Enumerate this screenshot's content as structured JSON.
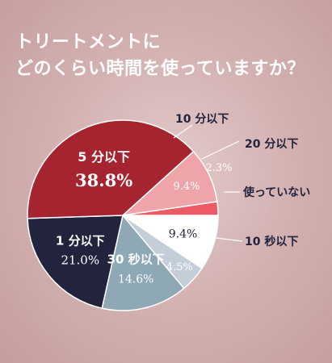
{
  "title": {
    "line1": "トリートメントに",
    "line2": "どのくらい時間を使っていますか？"
  },
  "chart_data": {
    "type": "pie",
    "title": "トリートメントにどのくらい時間を使っていますか？",
    "slices": [
      {
        "label": "使っていない",
        "value": 9.4,
        "display": "9.4%",
        "color": "#ffffff"
      },
      {
        "label": "10 秒以下",
        "value": 4.5,
        "display": "4.5%",
        "color": "#c3ced8"
      },
      {
        "label": "30 秒以下",
        "value": 14.6,
        "display": "14.6%",
        "color": "#8fa8b6"
      },
      {
        "label": "1 分以下",
        "value": 21.0,
        "display": "21.0%",
        "color": "#22233d"
      },
      {
        "label": "5 分以下",
        "value": 38.8,
        "display": "38.8%",
        "color": "#a62430"
      },
      {
        "label": "10 分以下",
        "value": 9.4,
        "display": "9.4%",
        "color": "#eea4a8"
      },
      {
        "label": "20 分以下",
        "value": 2.3,
        "display": "2.3%",
        "color": "#ec5a66"
      }
    ]
  }
}
